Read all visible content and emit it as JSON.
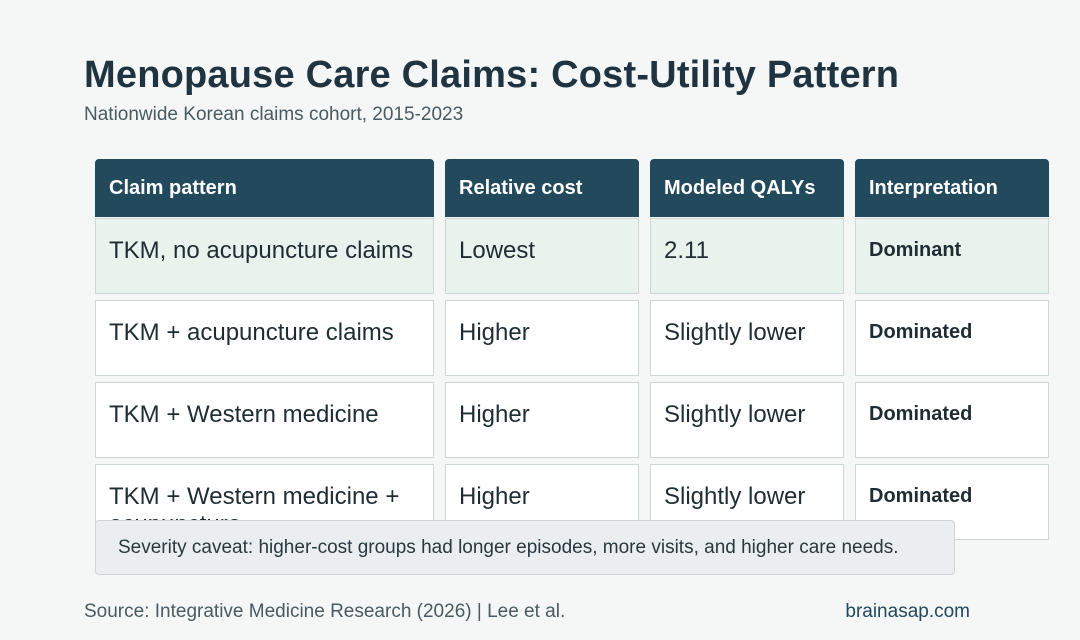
{
  "header": {
    "title": "Menopause Care Claims: Cost-Utility Pattern",
    "subtitle": "Nationwide Korean claims cohort, 2015-2023"
  },
  "table": {
    "columns": [
      "Claim pattern",
      "Relative cost",
      "Modeled QALYs",
      "Interpretation"
    ],
    "rows": [
      [
        "TKM, no acupuncture claims",
        "Lowest",
        "2.11",
        "Dominant"
      ],
      [
        "TKM + acupuncture claims",
        "Higher",
        "Slightly lower",
        "Dominated"
      ],
      [
        "TKM + Western medicine",
        "Higher",
        "Slightly lower",
        "Dominated"
      ],
      [
        "TKM + Western medicine + acupuncture",
        "Higher",
        "Slightly lower",
        "Dominated"
      ]
    ],
    "highlight_row_color": "#e8f3ee",
    "header_color": "#23495c"
  },
  "caveat": "Severity caveat: higher-cost groups had longer episodes, more visits, and higher care needs.",
  "footer": {
    "source": "Source: Integrative Medicine Research (2026) | Lee et al.",
    "brand": "brainasap.com"
  }
}
